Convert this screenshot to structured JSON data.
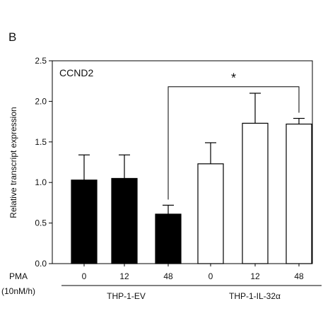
{
  "panel_label": "B",
  "chart_data": {
    "type": "bar",
    "title": "CCND2",
    "ylabel": "Relative transcript expression",
    "xlabel": "",
    "ylim": [
      0,
      2.5
    ],
    "yticks": [
      "0.0",
      "0.5",
      "1.0",
      "1.5",
      "2.0",
      "2.5"
    ],
    "x_header": [
      "PMA",
      "(10nM/h)"
    ],
    "categories": [
      "0",
      "12",
      "48",
      "0",
      "12",
      "48"
    ],
    "groups": [
      {
        "label": "THP-1-EV",
        "indices": [
          0,
          1,
          2
        ],
        "fill": "#000000"
      },
      {
        "label": "THP-1-IL-32α",
        "indices": [
          3,
          4,
          5
        ],
        "fill": "#ffffff"
      }
    ],
    "values": [
      1.03,
      1.05,
      0.61,
      1.23,
      1.73,
      1.72
    ],
    "errors": [
      0.31,
      0.29,
      0.11,
      0.26,
      0.37,
      0.07
    ],
    "significance": {
      "from": 2,
      "to": 5,
      "label": "*",
      "level": 2.18
    },
    "colors": {
      "axis": "#000000",
      "bar_edge": "#000000",
      "dark_bar": "#000000",
      "light_bar": "#ffffff"
    }
  }
}
